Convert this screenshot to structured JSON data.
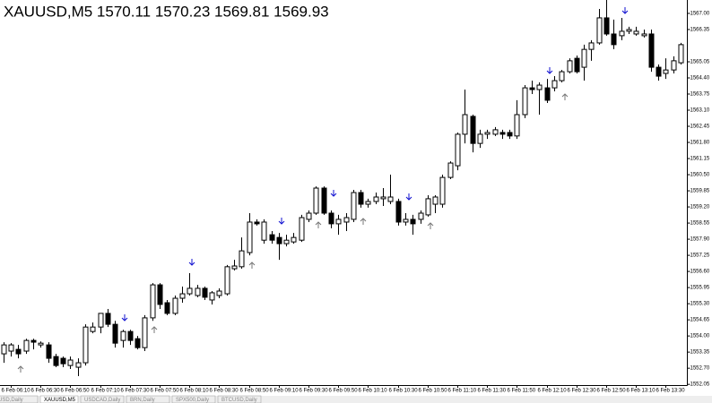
{
  "chart_data": {
    "type": "candlestick",
    "title": "XAUUSD,M5  1570.11 1570.23 1569.81 1569.93",
    "categories": [
      null,
      "6 Feb 06:10",
      null,
      null,
      null,
      "6 Feb 06:30",
      null,
      null,
      null,
      "6 Feb 06:50",
      null,
      null,
      null,
      "6 Feb 07:10",
      null,
      null,
      null,
      "6 Feb 07:30",
      null,
      null,
      null,
      "6 Feb 07:50",
      null,
      null,
      null,
      "6 Feb 08:10",
      null,
      null,
      null,
      "6 Feb 08:30",
      null,
      null,
      null,
      "6 Feb 08:50",
      null,
      null,
      null,
      "6 Feb 09:10",
      null,
      null,
      null,
      "6 Feb 09:30",
      null,
      null,
      null,
      "6 Feb 09:50",
      null,
      null,
      null,
      "6 Feb 10:10",
      null,
      null,
      null,
      "6 Feb 10:30",
      null,
      null,
      null,
      "6 Feb 10:50",
      null,
      null,
      null,
      "6 Feb 11:10",
      null,
      null,
      null,
      "6 Feb 11:30",
      null,
      null,
      null,
      "6 Feb 11:50",
      null,
      null,
      null,
      "6 Feb 12:10",
      null,
      null,
      null,
      "6 Feb 12:30",
      null,
      null,
      null,
      "6 Feb 12:50",
      null,
      null,
      null,
      "6 Feb 13:10",
      null,
      null,
      null,
      "6 Feb 13:30",
      null,
      null
    ],
    "open": [
      1553.28,
      1553.39,
      1553.46,
      1553.39,
      1553.82,
      1553.64,
      1553.64,
      1553.17,
      1553.1,
      1552.81,
      1552.74,
      1552.92,
      1554.18,
      1554.36,
      1554.91,
      1554.47,
      1553.82,
      1554.18,
      1553.89,
      1553.53,
      1554.73,
      1556.06,
      1555.34,
      1554.91,
      1555.52,
      1555.7,
      1555.63,
      1555.92,
      1555.45,
      1555.63,
      1555.7,
      1556.71,
      1556.79,
      1557.36,
      1558.59,
      1557.86,
      1558.08,
      1557.97,
      1557.72,
      1557.79,
      1557.86,
      1558.7,
      1558.95,
      1559.96,
      1558.95,
      1558.52,
      1558.59,
      1558.7,
      1559.78,
      1559.31,
      1559.42,
      1559.53,
      1559.42,
      1559.42,
      1558.59,
      1558.7,
      1558.7,
      1558.88,
      1559.31,
      1559.31,
      1560.39,
      1560.86,
      1562.13,
      1562.85,
      1561.76,
      1562.13,
      1562.13,
      1562.2,
      1562.2,
      1562.06,
      1562.92,
      1564.0,
      1563.93,
      1564.0,
      1564.0,
      1564.29,
      1564.65,
      1565.19,
      1564.83,
      1565.55,
      1565.81,
      1566.82,
      1566.17,
      1566.1,
      1566.28,
      1566.17,
      1566.1,
      1566.17,
      1564.83,
      1564.58,
      1564.72,
      1565.01
    ],
    "high": [
      1553.75,
      1553.71,
      1553.64,
      1553.89,
      1553.89,
      1553.78,
      1553.75,
      1553.28,
      1553.17,
      1553.17,
      1553.1,
      1554.47,
      1554.54,
      1554.91,
      1555.09,
      1554.61,
      1554.25,
      1554.25,
      1554.0,
      1554.84,
      1556.13,
      1556.13,
      1555.45,
      1555.63,
      1555.99,
      1556.53,
      1556.06,
      1555.99,
      1555.81,
      1555.92,
      1556.86,
      1557.07,
      1557.97,
      1558.95,
      1558.7,
      1558.7,
      1558.23,
      1558.15,
      1558.08,
      1558.15,
      1558.88,
      1559.06,
      1560.03,
      1560.03,
      1559.06,
      1558.88,
      1558.95,
      1559.89,
      1559.89,
      1559.53,
      1559.78,
      1559.96,
      1560.5,
      1559.53,
      1558.95,
      1558.88,
      1559.06,
      1559.67,
      1559.67,
      1560.5,
      1561.04,
      1562.2,
      1563.93,
      1562.92,
      1562.31,
      1562.31,
      1562.42,
      1562.31,
      1562.31,
      1563.5,
      1564.11,
      1564.29,
      1564.22,
      1564.36,
      1564.47,
      1564.72,
      1565.19,
      1565.3,
      1565.74,
      1565.92,
      1567.18,
      1567.54,
      1566.75,
      1566.82,
      1566.46,
      1566.46,
      1566.35,
      1566.35,
      1564.94,
      1565.19,
      1565.27,
      1565.81
    ],
    "low": [
      1552.92,
      1553.17,
      1553.1,
      1553.28,
      1553.46,
      1553.53,
      1552.92,
      1552.74,
      1552.74,
      1552.67,
      1552.38,
      1552.81,
      1554.11,
      1554.11,
      1554.36,
      1553.53,
      1553.53,
      1553.64,
      1553.46,
      1553.39,
      1554.61,
      1555.09,
      1554.84,
      1554.84,
      1555.34,
      1555.63,
      1555.56,
      1555.45,
      1555.27,
      1555.52,
      1555.63,
      1556.64,
      1556.71,
      1557.25,
      1558.45,
      1557.72,
      1557.72,
      1557.07,
      1557.61,
      1557.72,
      1557.79,
      1558.59,
      1558.88,
      1558.88,
      1558.34,
      1558.08,
      1558.23,
      1558.59,
      1559.17,
      1559.17,
      1559.31,
      1559.24,
      1559.31,
      1558.45,
      1558.45,
      1558.08,
      1558.52,
      1558.81,
      1558.95,
      1559.17,
      1560.32,
      1560.68,
      1561.76,
      1561.4,
      1561.58,
      1561.94,
      1562.06,
      1561.94,
      1561.94,
      1561.94,
      1562.78,
      1563.75,
      1562.92,
      1563.39,
      1563.86,
      1564.22,
      1564.58,
      1564.58,
      1564.29,
      1565.09,
      1565.74,
      1566.1,
      1565.56,
      1565.92,
      1566.17,
      1566.1,
      1566.03,
      1564.65,
      1564.29,
      1564.36,
      1564.58,
      1564.94
    ],
    "close": [
      1553.64,
      1553.64,
      1553.28,
      1553.82,
      1553.75,
      1553.71,
      1553.1,
      1552.81,
      1552.88,
      1553.03,
      1552.92,
      1554.36,
      1554.36,
      1554.91,
      1554.47,
      1553.71,
      1554.18,
      1553.82,
      1553.53,
      1554.73,
      1556.06,
      1555.27,
      1554.91,
      1555.52,
      1555.7,
      1555.92,
      1555.92,
      1555.56,
      1555.74,
      1555.81,
      1556.79,
      1556.82,
      1557.43,
      1558.59,
      1558.52,
      1558.59,
      1557.86,
      1557.72,
      1557.86,
      1557.97,
      1558.77,
      1558.95,
      1559.96,
      1558.95,
      1558.52,
      1558.7,
      1558.77,
      1559.78,
      1559.31,
      1559.42,
      1559.6,
      1559.6,
      1559.6,
      1558.59,
      1558.7,
      1558.52,
      1558.95,
      1559.53,
      1559.6,
      1560.39,
      1560.97,
      1562.13,
      1562.92,
      1561.76,
      1562.13,
      1562.2,
      1562.31,
      1562.13,
      1562.06,
      1562.92,
      1564.0,
      1563.93,
      1564.11,
      1563.5,
      1564.29,
      1564.65,
      1565.09,
      1564.65,
      1565.55,
      1565.81,
      1566.82,
      1566.17,
      1565.74,
      1566.28,
      1566.35,
      1566.28,
      1566.17,
      1564.83,
      1564.47,
      1564.72,
      1565.09,
      1565.74
    ],
    "up_color": "#ffffff",
    "down_color": "#000000",
    "ylim": [
      1552.02,
      1567.54
    ],
    "yticks": [
      {
        "value": 1567,
        "label": "1567.00"
      },
      1566.35,
      1565.05,
      {
        "value": 1564.4,
        "label": "1564.40"
      },
      1563.75,
      {
        "value": 1563.1,
        "label": "1563.10"
      },
      1562.45,
      {
        "value": 1561.8,
        "label": "1561.80"
      },
      1561.15,
      {
        "value": 1560.5,
        "label": "1560.50"
      },
      1559.85,
      {
        "value": 1559.2,
        "label": "1559.20"
      },
      1558.55,
      {
        "value": 1557.9,
        "label": "1557.90"
      },
      1557.25,
      {
        "value": 1556.6,
        "label": "1556.60"
      },
      1555.95,
      {
        "value": 1555.3,
        "label": "1555.30"
      },
      1554.65,
      {
        "value": 1554,
        "label": "1554.00"
      },
      1553.35,
      {
        "value": 1552.7,
        "label": "1552.70"
      },
      1552.05
    ],
    "grid": false
  },
  "tabs": [
    "USD,Daily",
    "XAUUSD,M5",
    "USDCAD,Daily",
    "BRN,Daily",
    "SPX500,Daily",
    "BTCUSD,Daily"
  ]
}
